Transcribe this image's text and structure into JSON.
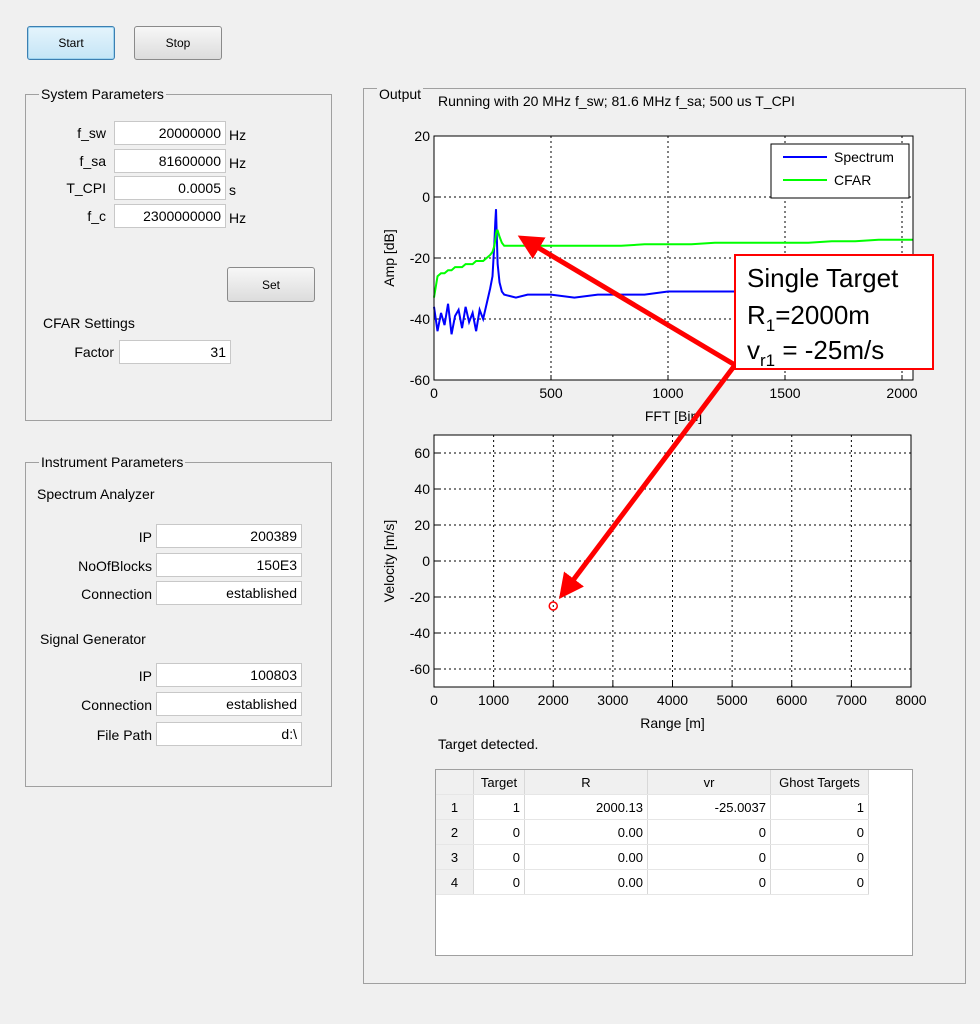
{
  "buttons": {
    "start": "Start",
    "stop": "Stop"
  },
  "system_parameters": {
    "title": "System Parameters",
    "fields": [
      {
        "label": "f_sw",
        "value": "20000000",
        "unit": "Hz"
      },
      {
        "label": "f_sa",
        "value": "81600000",
        "unit": "Hz"
      },
      {
        "label": "T_CPI",
        "value": "0.0005",
        "unit": "s"
      },
      {
        "label": "f_c",
        "value": "2300000000",
        "unit": "Hz"
      }
    ],
    "set_button": "Set",
    "cfar_title": "CFAR Settings",
    "cfar_fields": [
      {
        "label": "Factor",
        "value": "31"
      }
    ]
  },
  "instrument_parameters": {
    "title": "Instrument Parameters",
    "groups": [
      {
        "title": "Spectrum Analyzer",
        "fields": [
          {
            "label": "IP",
            "value": "200389"
          },
          {
            "label": "NoOfBlocks",
            "value": "150E3"
          },
          {
            "label": "Connection",
            "value": "established"
          }
        ]
      },
      {
        "title": "Signal Generator",
        "fields": [
          {
            "label": "IP",
            "value": "100803"
          },
          {
            "label": "Connection",
            "value": "established"
          },
          {
            "label": "File Path",
            "value": "d:\\"
          }
        ]
      }
    ]
  },
  "output": {
    "title": "Output",
    "status": "Running with 20 MHz f_sw; 81.6 MHz f_sa; 500 us T_CPI",
    "message": "Target detected.",
    "table": {
      "columns": [
        "Target",
        "R",
        "vr",
        "Ghost Targets"
      ],
      "row_headers": [
        "1",
        "2",
        "3",
        "4"
      ],
      "rows": [
        [
          "1",
          "2000.13",
          "-25.0037",
          "1"
        ],
        [
          "0",
          "0.00",
          "0",
          "0"
        ],
        [
          "0",
          "0.00",
          "0",
          "0"
        ],
        [
          "0",
          "0.00",
          "0",
          "0"
        ]
      ]
    }
  },
  "annotation": {
    "title": "Single Target",
    "lines": [
      {
        "text": "R",
        "sub": "1",
        "after": "=2000m"
      },
      {
        "text": "v",
        "sub": "r1",
        "after": " = -25m/s"
      }
    ],
    "color": "#ff0000"
  },
  "chart_data": [
    {
      "type": "line",
      "xlabel": "FFT [Bin]",
      "ylabel": "Amp [dB]",
      "x": [
        0,
        15,
        30,
        45,
        60,
        75,
        90,
        105,
        120,
        135,
        150,
        165,
        180,
        195,
        210,
        225,
        240,
        250,
        258,
        262,
        265,
        268,
        272,
        280,
        290,
        300,
        350,
        400,
        500,
        600,
        700,
        800,
        900,
        1000,
        1100,
        1200,
        1300,
        1400,
        1500,
        1600,
        1700,
        1800,
        1900,
        2000,
        2047
      ],
      "series": [
        {
          "name": "Spectrum",
          "color": "#0000ff",
          "values": [
            -36,
            -44,
            -38,
            -42,
            -35,
            -45,
            -39,
            -37,
            -43,
            -36,
            -41,
            -38,
            -44,
            -37,
            -40,
            -35,
            -30,
            -26,
            -15,
            -8,
            -4,
            -12,
            -22,
            -28,
            -31,
            -32,
            -33,
            -32,
            -32,
            -33,
            -32,
            -32,
            -32,
            -31,
            -31,
            -31,
            -31,
            -30,
            -30,
            -31,
            -30,
            -30,
            -30,
            -30,
            -30
          ]
        },
        {
          "name": "CFAR",
          "color": "#00ff00",
          "values": [
            -33,
            -26,
            -25,
            -25,
            -24,
            -24,
            -23,
            -23,
            -23,
            -22,
            -22,
            -22,
            -21,
            -21,
            -21,
            -20,
            -19,
            -18,
            -16,
            -14,
            -12,
            -11,
            -11,
            -13,
            -15,
            -16,
            -16,
            -16,
            -16,
            -16,
            -16,
            -16,
            -15.5,
            -15.5,
            -15.5,
            -15,
            -15,
            -15,
            -15,
            -15,
            -14.5,
            -14.5,
            -14,
            -14,
            -14
          ]
        }
      ],
      "xlim": [
        0,
        2047
      ],
      "xticks": [
        0,
        500,
        1000,
        1500,
        2000
      ],
      "ylim": [
        -60,
        20
      ],
      "yticks": [
        -60,
        -40,
        -20,
        0,
        20
      ],
      "grid": true,
      "legend": "upper right"
    },
    {
      "type": "scatter",
      "xlabel": "Range [m]",
      "ylabel": "Velocity [m/s]",
      "x": [
        2000
      ],
      "values": [
        -25
      ],
      "color": "#ff0000",
      "xlim": [
        0,
        8000
      ],
      "xticks": [
        0,
        1000,
        2000,
        3000,
        4000,
        5000,
        6000,
        7000,
        8000
      ],
      "ylim": [
        -70,
        70
      ],
      "yticks": [
        -60,
        -40,
        -20,
        0,
        20,
        40,
        60
      ],
      "grid": true
    }
  ]
}
